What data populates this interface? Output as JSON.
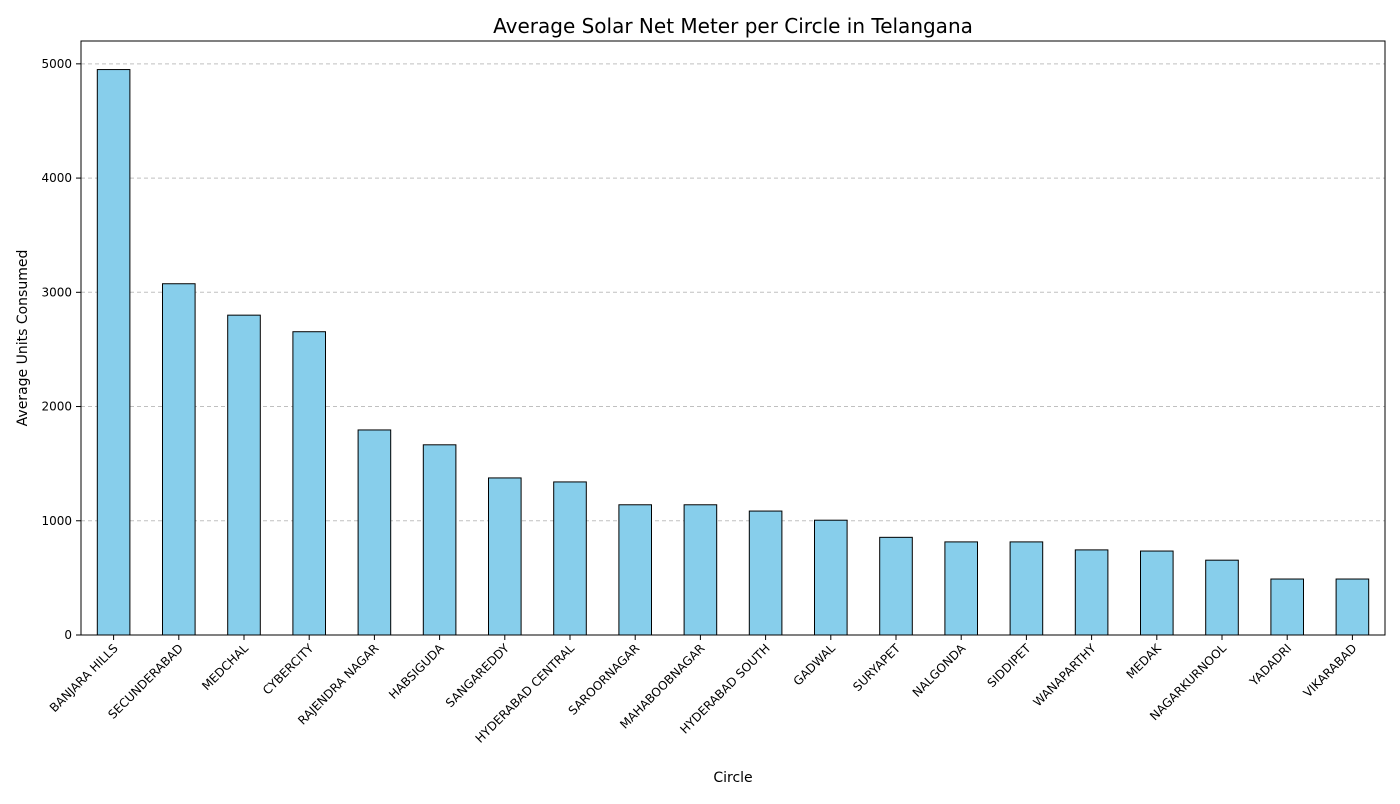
{
  "chart_data": {
    "type": "bar",
    "title": "Average Solar Net Meter per Circle in Telangana",
    "xlabel": "Circle",
    "ylabel": "Average Units Consumed",
    "categories": [
      "BANJARA HILLS",
      "SECUNDERABAD",
      "MEDCHAL",
      "CYBERCITY",
      "RAJENDRA NAGAR",
      "HABSIGUDA",
      "SANGAREDDY",
      "HYDERABAD CENTRAL",
      "SAROORNAGAR",
      "MAHABOOBNAGAR",
      "HYDERABAD SOUTH",
      "GADWAL",
      "SURYAPET",
      "NALGONDA",
      "SIDDIPET",
      "WANAPARTHY",
      "MEDAK",
      "NAGARKURNOOL",
      "YADADRI",
      "VIKARABAD"
    ],
    "values": [
      4950,
      3075,
      2800,
      2655,
      1795,
      1665,
      1375,
      1340,
      1140,
      1140,
      1085,
      1005,
      855,
      815,
      815,
      745,
      735,
      655,
      490,
      490
    ],
    "ylim": [
      0,
      5200
    ],
    "yticks": [
      0,
      1000,
      2000,
      3000,
      4000,
      5000
    ],
    "grid": "y-dashed",
    "bar_color": "#87ceeb",
    "edge_color": "#000000",
    "grid_color": "#c0c0c0"
  }
}
